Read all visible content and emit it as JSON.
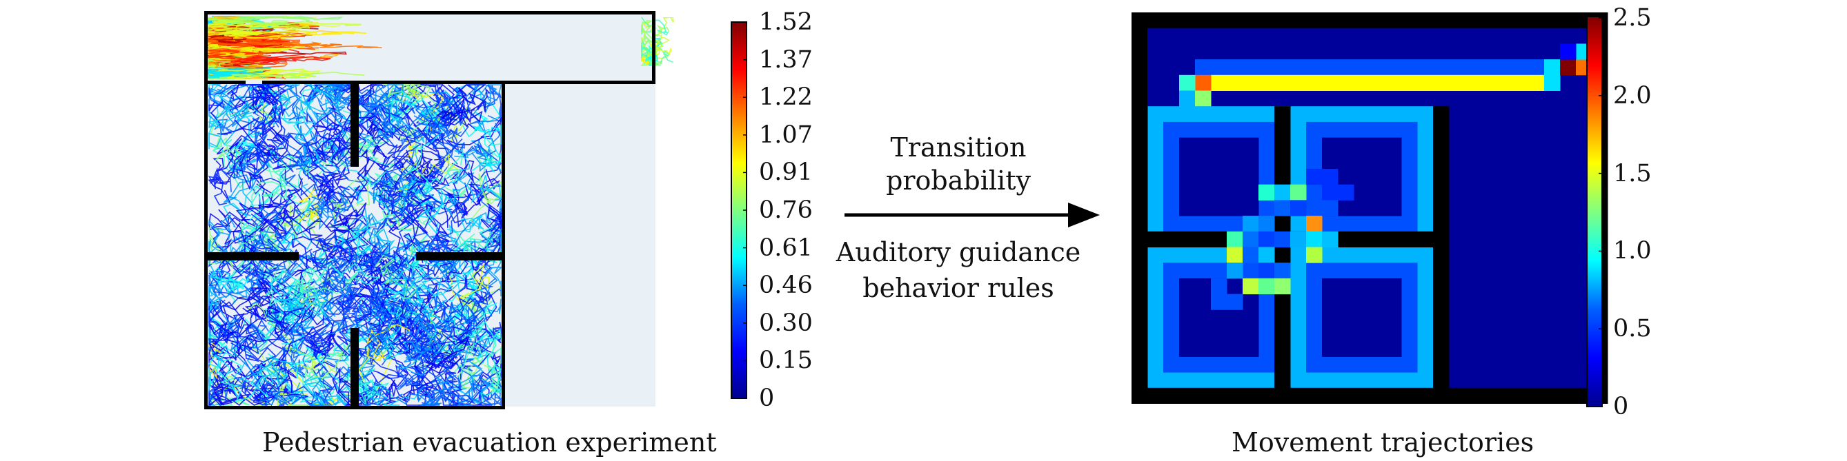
{
  "left_panel": {
    "caption": "Pedestrian evacuation experiment",
    "colorbar_ticks": [
      "1.52",
      "1.37",
      "1.22",
      "1.07",
      "0.91",
      "0.76",
      "0.61",
      "0.46",
      "0.30",
      "0.15",
      "0"
    ]
  },
  "middle": {
    "top_lines": [
      "Transition",
      "probability"
    ],
    "bottom_lines": [
      "Auditory guidance",
      "behavior rules"
    ]
  },
  "right_panel": {
    "caption": "Movement trajectories",
    "colorbar_ticks": [
      "2.5",
      "2.0",
      "1.5",
      "1.0",
      "0.5",
      "0"
    ]
  },
  "colormap": [
    "#00008f",
    "#0000ff",
    "#0080ff",
    "#00ffff",
    "#80ff80",
    "#ffff00",
    "#ff8000",
    "#ff0000",
    "#800000"
  ],
  "wall_color": "#000000"
}
